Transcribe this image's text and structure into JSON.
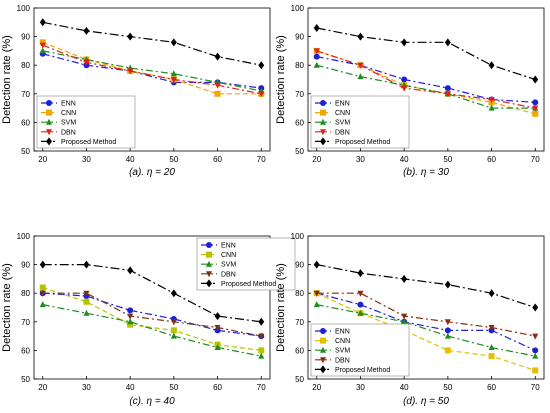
{
  "chart_data": [
    {
      "type": "line",
      "caption": "(a). η = 20",
      "ylabel": "Detection rate (%)",
      "xlabel": "",
      "x": [
        20,
        30,
        40,
        50,
        60,
        70
      ],
      "xlim": [
        18,
        72
      ],
      "ylim": [
        50,
        100
      ],
      "yticks": [
        50,
        60,
        70,
        80,
        90,
        100
      ],
      "grid": false,
      "legend_position": "lower-left",
      "series": [
        {
          "name": "ENN",
          "values": [
            84,
            80,
            78,
            74,
            74,
            72
          ]
        },
        {
          "name": "CNN",
          "values": [
            88,
            82,
            78,
            75,
            70,
            70
          ]
        },
        {
          "name": "SVM",
          "values": [
            85,
            82,
            79,
            77,
            74,
            71
          ]
        },
        {
          "name": "DBN",
          "values": [
            87,
            81,
            78,
            75,
            73,
            70
          ]
        },
        {
          "name": "Proposed Method",
          "values": [
            95,
            92,
            90,
            88,
            83,
            80
          ]
        }
      ]
    },
    {
      "type": "line",
      "caption": "(b). η = 30",
      "ylabel": "Detection rate (%)",
      "xlabel": "",
      "x": [
        20,
        30,
        40,
        50,
        60,
        70
      ],
      "xlim": [
        18,
        72
      ],
      "ylim": [
        50,
        100
      ],
      "yticks": [
        50,
        60,
        70,
        80,
        90,
        100
      ],
      "grid": false,
      "legend_position": "lower-left",
      "series": [
        {
          "name": "ENN",
          "values": [
            83,
            80,
            75,
            72,
            68,
            67
          ]
        },
        {
          "name": "CNN",
          "values": [
            85,
            80,
            73,
            70,
            67,
            63
          ]
        },
        {
          "name": "SVM",
          "values": [
            80,
            76,
            73,
            70,
            65,
            65
          ]
        },
        {
          "name": "DBN",
          "values": [
            85,
            80,
            72,
            70,
            68,
            65
          ]
        },
        {
          "name": "Proposed Method",
          "values": [
            93,
            90,
            88,
            88,
            80,
            75
          ]
        }
      ]
    },
    {
      "type": "line",
      "caption": "(c). η = 40",
      "ylabel": "Detection rate (%)",
      "xlabel": "",
      "x": [
        20,
        30,
        40,
        50,
        60,
        70
      ],
      "xlim": [
        18,
        72
      ],
      "ylim": [
        50,
        100
      ],
      "yticks": [
        50,
        60,
        70,
        80,
        90,
        100
      ],
      "grid": false,
      "legend_position": "upper-right",
      "series": [
        {
          "name": "ENN",
          "values": [
            80,
            79,
            74,
            71,
            67,
            65
          ]
        },
        {
          "name": "CNN",
          "values": [
            82,
            77,
            69,
            67,
            62,
            60
          ]
        },
        {
          "name": "SVM",
          "values": [
            76,
            73,
            70,
            65,
            61,
            58
          ]
        },
        {
          "name": "DBN",
          "values": [
            80,
            80,
            72,
            70,
            68,
            65
          ]
        },
        {
          "name": "Proposed Method",
          "values": [
            90,
            90,
            88,
            80,
            72,
            70
          ]
        }
      ]
    },
    {
      "type": "line",
      "caption": "(d). η = 50",
      "ylabel": "Detection rate (%)",
      "xlabel": "",
      "x": [
        20,
        30,
        40,
        50,
        60,
        70
      ],
      "xlim": [
        18,
        72
      ],
      "ylim": [
        50,
        100
      ],
      "yticks": [
        50,
        60,
        70,
        80,
        90,
        100
      ],
      "grid": false,
      "legend_position": "lower-left",
      "series": [
        {
          "name": "ENN",
          "values": [
            80,
            76,
            70,
            67,
            67,
            60
          ]
        },
        {
          "name": "CNN",
          "values": [
            80,
            73,
            67,
            60,
            58,
            53
          ]
        },
        {
          "name": "SVM",
          "values": [
            76,
            73,
            70,
            65,
            61,
            58
          ]
        },
        {
          "name": "DBN",
          "values": [
            80,
            80,
            72,
            70,
            68,
            65
          ]
        },
        {
          "name": "Proposed Method",
          "values": [
            90,
            87,
            85,
            83,
            80,
            75
          ]
        }
      ]
    }
  ],
  "series_styles": [
    {
      "color": "#1f1fd6",
      "marker": "circle",
      "dash": "7,3,2,3"
    },
    {
      "color": "#f0a800",
      "marker": "square",
      "dash": "5,3"
    },
    {
      "color": "#1e8c1e",
      "marker": "triangle-up",
      "dash": "7,3,2,3"
    },
    {
      "color": "#e0201c",
      "marker": "triangle-down",
      "dash": "7,3,2,3"
    },
    {
      "color": "#000000",
      "marker": "diamond",
      "dash": "9,3,2,3"
    }
  ],
  "panel_styles": [
    {
      "CNN_color": "#f0a800",
      "DBN_color": "#e0201c"
    },
    {
      "CNN_color": "#f0a800",
      "DBN_color": "#e0201c"
    },
    {
      "CNN_color": "#b8c400",
      "DBN_color": "#7a3318"
    },
    {
      "CNN_color": "#e0c000",
      "DBN_color": "#8b2a12"
    }
  ]
}
